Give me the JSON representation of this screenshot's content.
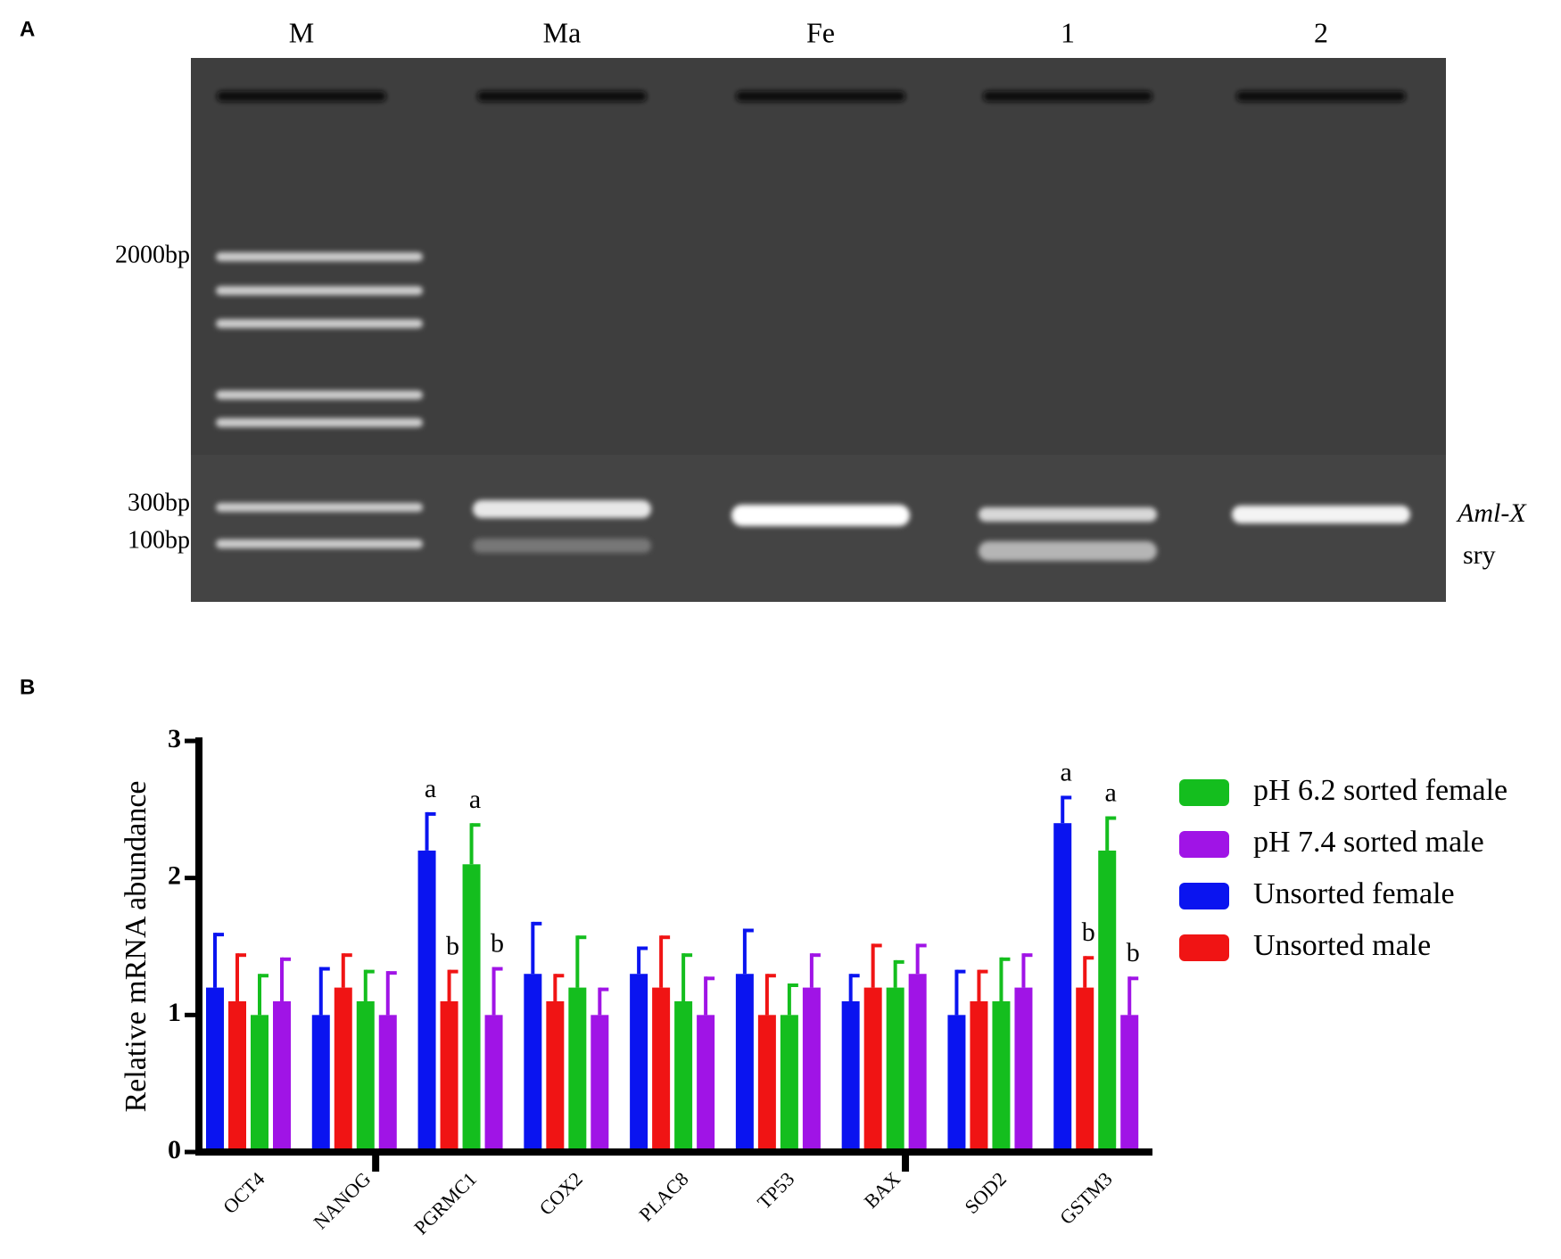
{
  "gel": {
    "panel_label": "A",
    "lanes": [
      "M",
      "Ma",
      "Fe",
      "1",
      "2"
    ],
    "markers": [
      "2000bp",
      "300bp",
      "100bp"
    ],
    "bands": [
      "Aml-X",
      "sry"
    ]
  },
  "chart_data": {
    "type": "bar",
    "panel_label": "B",
    "y_label": "Relative mRNA abundance",
    "categories": [
      "OCT4",
      "NANOG",
      "PGRMC1",
      "COX2",
      "PLAC8",
      "TP53",
      "BAX",
      "SOD2",
      "GSTM3"
    ],
    "ylim": [
      0,
      3
    ],
    "yticks": [
      0,
      1,
      2,
      3
    ],
    "series": [
      {
        "name": "Unsorted female",
        "color": "#0a14f0",
        "values": [
          1.2,
          1.0,
          2.2,
          1.3,
          1.3,
          1.3,
          1.1,
          1.0,
          2.4
        ],
        "errors": [
          0.4,
          0.35,
          0.28,
          0.38,
          0.2,
          0.33,
          0.2,
          0.33,
          0.2
        ],
        "letters": [
          null,
          null,
          "a",
          null,
          null,
          null,
          null,
          null,
          "a"
        ]
      },
      {
        "name": "Unsorted male",
        "color": "#f01414",
        "values": [
          1.1,
          1.2,
          1.1,
          1.1,
          1.2,
          1.0,
          1.2,
          1.1,
          1.2
        ],
        "errors": [
          0.35,
          0.25,
          0.23,
          0.2,
          0.38,
          0.3,
          0.32,
          0.23,
          0.23
        ],
        "letters": [
          null,
          null,
          "b",
          null,
          null,
          null,
          null,
          null,
          "b"
        ]
      },
      {
        "name": "pH 6.2 sorted female",
        "color": "#14be1e",
        "values": [
          1.0,
          1.1,
          2.1,
          1.2,
          1.1,
          1.0,
          1.2,
          1.1,
          2.2
        ],
        "errors": [
          0.3,
          0.23,
          0.3,
          0.38,
          0.35,
          0.23,
          0.2,
          0.32,
          0.25
        ],
        "letters": [
          null,
          null,
          "a",
          null,
          null,
          null,
          null,
          null,
          "a"
        ]
      },
      {
        "name": "pH 7.4 sorted male",
        "color": "#a014e6",
        "values": [
          1.1,
          1.0,
          1.0,
          1.0,
          1.0,
          1.2,
          1.3,
          1.2,
          1.0
        ],
        "errors": [
          0.32,
          0.32,
          0.35,
          0.2,
          0.28,
          0.25,
          0.22,
          0.25,
          0.28
        ],
        "letters": [
          null,
          null,
          "b",
          null,
          null,
          null,
          null,
          null,
          "b"
        ]
      }
    ]
  }
}
